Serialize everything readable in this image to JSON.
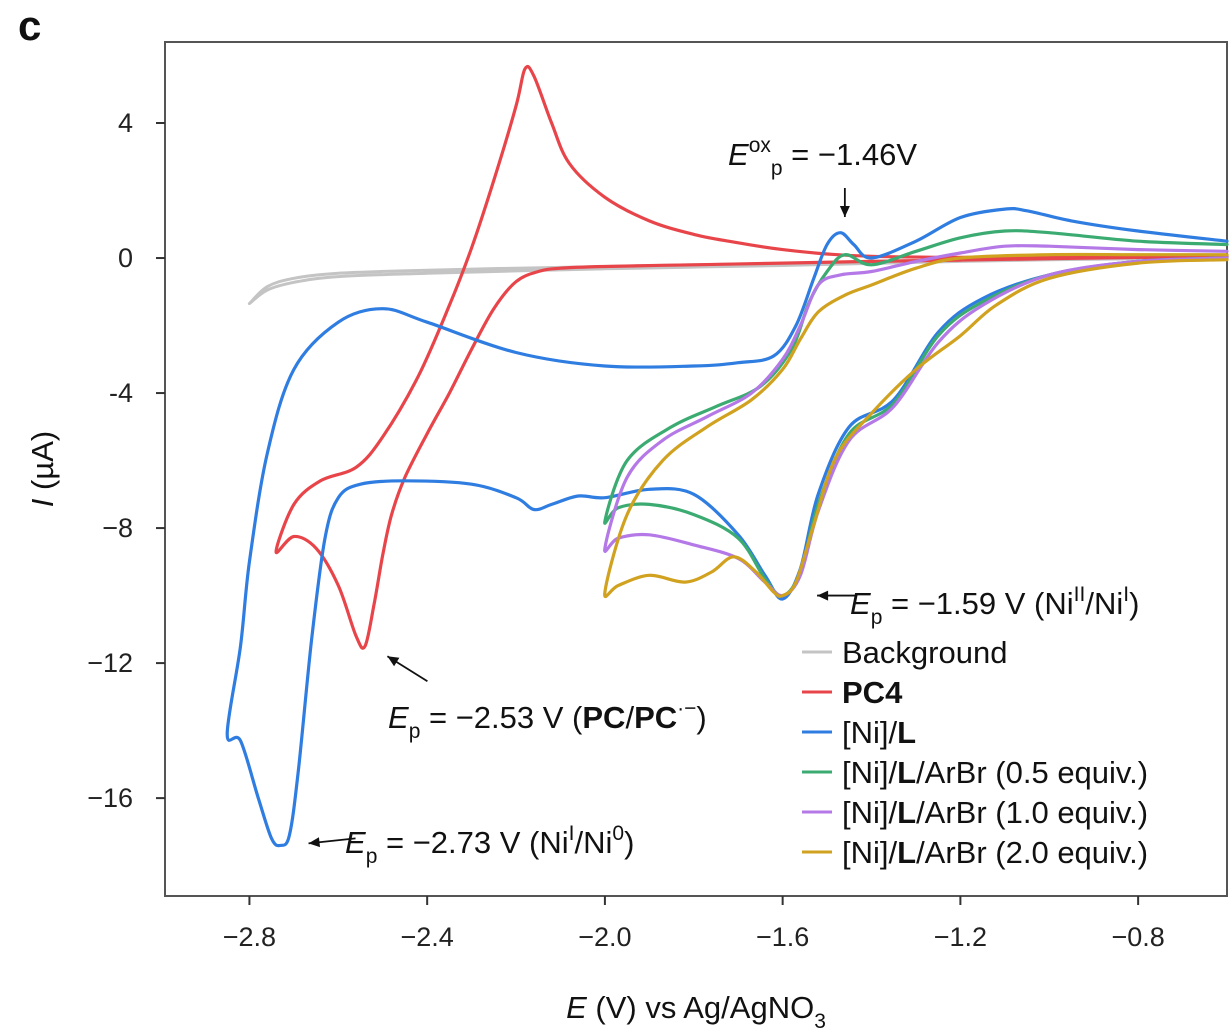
{
  "panel_label": "c",
  "chart_data": {
    "type": "line",
    "xlabel": {
      "italic": "E",
      "rest": " (V) vs Ag/AgNO",
      "sub": "3"
    },
    "ylabel": {
      "italic": "I",
      "rest": " (µA)"
    },
    "xlim": [
      -2.99,
      -0.6
    ],
    "ylim": [
      -18.9,
      6.4
    ],
    "x_ticks": [
      -2.8,
      -2.4,
      -2.0,
      -1.6,
      -1.2,
      -0.8
    ],
    "x_tick_labels": [
      "−2.8",
      "−2.4",
      "−2.0",
      "−1.6",
      "−1.2",
      "−0.8"
    ],
    "y_ticks": [
      4,
      0,
      -4,
      -8,
      -12,
      -16
    ],
    "y_tick_labels": [
      "4",
      "0",
      "-4",
      "−8",
      "−12",
      "−16"
    ],
    "colors": {
      "background": "#c4c4c4",
      "pc4": "#e8454a",
      "ni_l": "#2f7de1",
      "arbr_05": "#3cab72",
      "arbr_10": "#b479e6",
      "arbr_20": "#d1a21f"
    },
    "legend": [
      {
        "key": "background",
        "parts": [
          {
            "t": "Background",
            "b": false
          }
        ]
      },
      {
        "key": "pc4",
        "parts": [
          {
            "t": "PC4",
            "b": true
          }
        ]
      },
      {
        "key": "ni_l",
        "parts": [
          {
            "t": "[Ni]/",
            "b": false
          },
          {
            "t": "L",
            "b": true
          }
        ]
      },
      {
        "key": "arbr_05",
        "parts": [
          {
            "t": "[Ni]/",
            "b": false
          },
          {
            "t": "L",
            "b": true
          },
          {
            "t": "/ArBr (0.5 equiv.)",
            "b": false
          }
        ]
      },
      {
        "key": "arbr_10",
        "parts": [
          {
            "t": "[Ni]/",
            "b": false
          },
          {
            "t": "L",
            "b": true
          },
          {
            "t": "/ArBr (1.0 equiv.)",
            "b": false
          }
        ]
      },
      {
        "key": "arbr_20",
        "parts": [
          {
            "t": "[Ni]/",
            "b": false
          },
          {
            "t": "L",
            "b": true
          },
          {
            "t": "/ArBr (2.0 equiv.)",
            "b": false
          }
        ]
      }
    ],
    "legend_placement": "bottom-right",
    "annotations": [
      {
        "key": "ep_ox",
        "x": -1.46,
        "y": 0.8,
        "parts": [
          {
            "t": "E",
            "i": true
          },
          {
            "t": "ox",
            "sup": true
          },
          {
            "t": "p",
            "sub": true
          },
          {
            "t": " = −1.46V"
          }
        ]
      },
      {
        "key": "ep_ni2",
        "x": -1.59,
        "y": -10.0,
        "parts": [
          {
            "t": "E",
            "i": true
          },
          {
            "t": "p",
            "sub": true
          },
          {
            "t": " = −1.59 V (Ni"
          },
          {
            "t": "II",
            "sup": true
          },
          {
            "t": "/Ni"
          },
          {
            "t": "I",
            "sup": true
          },
          {
            "t": ")"
          }
        ]
      },
      {
        "key": "ep_pc",
        "x": -2.53,
        "y": -11.5,
        "parts": [
          {
            "t": "E",
            "i": true
          },
          {
            "t": "p",
            "sub": true
          },
          {
            "t": " = −2.53 V ("
          },
          {
            "t": "PC",
            "b": true
          },
          {
            "t": "/"
          },
          {
            "t": "PC",
            "b": true
          },
          {
            "t": "·−",
            "sup": true
          },
          {
            "t": ")"
          }
        ]
      },
      {
        "key": "ep_ni1",
        "x": -2.73,
        "y": -17.4,
        "parts": [
          {
            "t": "E",
            "i": true
          },
          {
            "t": "p",
            "sub": true
          },
          {
            "t": " = −2.73 V (Ni"
          },
          {
            "t": "I",
            "sup": true
          },
          {
            "t": "/Ni"
          },
          {
            "t": "0",
            "sup": true
          },
          {
            "t": ")"
          }
        ]
      }
    ],
    "series": [
      {
        "key": "background",
        "name": "Background",
        "closed": true,
        "points": [
          [
            -2.8,
            -1.35
          ],
          [
            -2.76,
            -0.95
          ],
          [
            -2.7,
            -0.72
          ],
          [
            -2.6,
            -0.55
          ],
          [
            -2.4,
            -0.45
          ],
          [
            -2.2,
            -0.38
          ],
          [
            -2.0,
            -0.32
          ],
          [
            -1.8,
            -0.27
          ],
          [
            -1.6,
            -0.22
          ],
          [
            -1.4,
            -0.16
          ],
          [
            -1.2,
            -0.1
          ],
          [
            -1.0,
            -0.05
          ],
          [
            -0.8,
            -0.02
          ],
          [
            -0.6,
            0.0
          ],
          [
            -0.8,
            0.03
          ],
          [
            -1.0,
            0.02
          ],
          [
            -1.2,
            -0.04
          ],
          [
            -1.4,
            -0.1
          ],
          [
            -1.6,
            -0.16
          ],
          [
            -1.8,
            -0.2
          ],
          [
            -2.0,
            -0.25
          ],
          [
            -2.2,
            -0.3
          ],
          [
            -2.4,
            -0.36
          ],
          [
            -2.6,
            -0.45
          ],
          [
            -2.7,
            -0.6
          ],
          [
            -2.76,
            -0.85
          ],
          [
            -2.8,
            -1.35
          ]
        ]
      },
      {
        "key": "pc4",
        "name": "PC4",
        "closed": false,
        "points": [
          [
            -0.6,
            0.05
          ],
          [
            -0.8,
            0.02
          ],
          [
            -1.0,
            -0.02
          ],
          [
            -1.2,
            -0.06
          ],
          [
            -1.4,
            -0.1
          ],
          [
            -1.6,
            -0.15
          ],
          [
            -1.8,
            -0.2
          ],
          [
            -2.0,
            -0.25
          ],
          [
            -2.1,
            -0.3
          ],
          [
            -2.15,
            -0.4
          ],
          [
            -2.2,
            -0.7
          ],
          [
            -2.25,
            -1.5
          ],
          [
            -2.3,
            -2.7
          ],
          [
            -2.35,
            -4.0
          ],
          [
            -2.4,
            -5.2
          ],
          [
            -2.45,
            -6.5
          ],
          [
            -2.48,
            -7.6
          ],
          [
            -2.5,
            -8.8
          ],
          [
            -2.52,
            -10.3
          ],
          [
            -2.54,
            -11.5
          ],
          [
            -2.56,
            -11.2
          ],
          [
            -2.6,
            -9.7
          ],
          [
            -2.65,
            -8.6
          ],
          [
            -2.7,
            -8.25
          ],
          [
            -2.74,
            -8.7
          ],
          [
            -2.7,
            -7.3
          ],
          [
            -2.64,
            -6.6
          ],
          [
            -2.56,
            -6.2
          ],
          [
            -2.5,
            -5.3
          ],
          [
            -2.42,
            -3.5
          ],
          [
            -2.35,
            -1.4
          ],
          [
            -2.3,
            0.3
          ],
          [
            -2.25,
            2.3
          ],
          [
            -2.2,
            4.5
          ],
          [
            -2.18,
            5.6
          ],
          [
            -2.16,
            5.4
          ],
          [
            -2.12,
            4.0
          ],
          [
            -2.08,
            2.8
          ],
          [
            -2.0,
            1.8
          ],
          [
            -1.9,
            1.1
          ],
          [
            -1.8,
            0.7
          ],
          [
            -1.7,
            0.45
          ],
          [
            -1.6,
            0.25
          ],
          [
            -1.5,
            0.12
          ],
          [
            -1.4,
            0.05
          ],
          [
            -1.2,
            0.02
          ],
          [
            -1.0,
            0.03
          ],
          [
            -0.8,
            0.05
          ],
          [
            -0.6,
            0.06
          ]
        ]
      },
      {
        "key": "ni_l",
        "name": "[Ni]/L",
        "closed": false,
        "points": [
          [
            -0.6,
            0.5
          ],
          [
            -0.8,
            0.8
          ],
          [
            -0.95,
            1.1
          ],
          [
            -1.05,
            1.4
          ],
          [
            -1.1,
            1.45
          ],
          [
            -1.2,
            1.2
          ],
          [
            -1.3,
            0.5
          ],
          [
            -1.4,
            0.0
          ],
          [
            -1.44,
            0.4
          ],
          [
            -1.47,
            0.75
          ],
          [
            -1.5,
            0.4
          ],
          [
            -1.53,
            -0.6
          ],
          [
            -1.57,
            -2.0
          ],
          [
            -1.62,
            -2.9
          ],
          [
            -1.7,
            -3.1
          ],
          [
            -1.8,
            -3.2
          ],
          [
            -2.0,
            -3.2
          ],
          [
            -2.2,
            -2.8
          ],
          [
            -2.4,
            -1.9
          ],
          [
            -2.5,
            -1.5
          ],
          [
            -2.6,
            -1.9
          ],
          [
            -2.7,
            -3.3
          ],
          [
            -2.76,
            -5.8
          ],
          [
            -2.8,
            -9.0
          ],
          [
            -2.82,
            -11.5
          ],
          [
            -2.85,
            -14.1
          ],
          [
            -2.82,
            -14.3
          ],
          [
            -2.78,
            -16.0
          ],
          [
            -2.75,
            -17.2
          ],
          [
            -2.73,
            -17.4
          ],
          [
            -2.71,
            -17.1
          ],
          [
            -2.69,
            -15.2
          ],
          [
            -2.66,
            -11.3
          ],
          [
            -2.63,
            -8.3
          ],
          [
            -2.6,
            -7.1
          ],
          [
            -2.55,
            -6.7
          ],
          [
            -2.45,
            -6.6
          ],
          [
            -2.3,
            -6.7
          ],
          [
            -2.2,
            -7.1
          ],
          [
            -2.16,
            -7.45
          ],
          [
            -2.12,
            -7.3
          ],
          [
            -2.06,
            -7.05
          ],
          [
            -2.0,
            -7.1
          ],
          [
            -1.9,
            -6.85
          ],
          [
            -1.8,
            -7.0
          ],
          [
            -1.7,
            -8.2
          ],
          [
            -1.64,
            -9.4
          ],
          [
            -1.6,
            -10.1
          ],
          [
            -1.56,
            -9.2
          ],
          [
            -1.52,
            -7.0
          ],
          [
            -1.45,
            -5.0
          ],
          [
            -1.35,
            -4.2
          ],
          [
            -1.25,
            -2.2
          ],
          [
            -1.15,
            -1.2
          ],
          [
            -1.0,
            -0.5
          ],
          [
            -0.8,
            -0.1
          ],
          [
            -0.6,
            0.0
          ]
        ]
      },
      {
        "key": "arbr_05",
        "name": "[Ni]/L/ArBr (0.5 equiv.)",
        "closed": false,
        "points": [
          [
            -0.6,
            0.4
          ],
          [
            -0.8,
            0.5
          ],
          [
            -1.0,
            0.75
          ],
          [
            -1.1,
            0.8
          ],
          [
            -1.2,
            0.6
          ],
          [
            -1.3,
            0.2
          ],
          [
            -1.4,
            -0.2
          ],
          [
            -1.46,
            0.1
          ],
          [
            -1.5,
            -0.4
          ],
          [
            -1.54,
            -1.3
          ],
          [
            -1.58,
            -2.7
          ],
          [
            -1.65,
            -3.8
          ],
          [
            -1.75,
            -4.4
          ],
          [
            -1.85,
            -5.0
          ],
          [
            -1.95,
            -6.0
          ],
          [
            -2.0,
            -7.8
          ],
          [
            -1.97,
            -7.4
          ],
          [
            -1.9,
            -7.3
          ],
          [
            -1.8,
            -7.6
          ],
          [
            -1.7,
            -8.3
          ],
          [
            -1.64,
            -9.5
          ],
          [
            -1.6,
            -10.0
          ],
          [
            -1.56,
            -9.3
          ],
          [
            -1.52,
            -7.3
          ],
          [
            -1.45,
            -5.2
          ],
          [
            -1.35,
            -4.3
          ],
          [
            -1.25,
            -2.3
          ],
          [
            -1.15,
            -1.3
          ],
          [
            -1.0,
            -0.5
          ],
          [
            -0.8,
            -0.1
          ],
          [
            -0.6,
            0.0
          ]
        ]
      },
      {
        "key": "arbr_10",
        "name": "[Ni]/L/ArBr (1.0 equiv.)",
        "closed": false,
        "points": [
          [
            -0.6,
            0.2
          ],
          [
            -0.8,
            0.25
          ],
          [
            -1.0,
            0.35
          ],
          [
            -1.1,
            0.35
          ],
          [
            -1.2,
            0.15
          ],
          [
            -1.3,
            -0.1
          ],
          [
            -1.4,
            -0.4
          ],
          [
            -1.47,
            -0.5
          ],
          [
            -1.52,
            -0.8
          ],
          [
            -1.56,
            -2.0
          ],
          [
            -1.6,
            -3.0
          ],
          [
            -1.67,
            -4.0
          ],
          [
            -1.77,
            -4.7
          ],
          [
            -1.87,
            -5.4
          ],
          [
            -1.95,
            -6.5
          ],
          [
            -2.0,
            -8.6
          ],
          [
            -1.97,
            -8.3
          ],
          [
            -1.9,
            -8.2
          ],
          [
            -1.8,
            -8.5
          ],
          [
            -1.7,
            -8.9
          ],
          [
            -1.64,
            -9.6
          ],
          [
            -1.6,
            -10.0
          ],
          [
            -1.56,
            -9.4
          ],
          [
            -1.52,
            -7.5
          ],
          [
            -1.45,
            -5.4
          ],
          [
            -1.35,
            -4.4
          ],
          [
            -1.25,
            -2.5
          ],
          [
            -1.15,
            -1.4
          ],
          [
            -1.0,
            -0.5
          ],
          [
            -0.8,
            -0.1
          ],
          [
            -0.6,
            0.0
          ]
        ]
      },
      {
        "key": "arbr_20",
        "name": "[Ni]/L/ArBr (2.0 equiv.)",
        "closed": false,
        "points": [
          [
            -0.6,
            0.1
          ],
          [
            -0.8,
            0.1
          ],
          [
            -1.0,
            0.1
          ],
          [
            -1.2,
            0.0
          ],
          [
            -1.3,
            -0.3
          ],
          [
            -1.4,
            -0.8
          ],
          [
            -1.46,
            -1.1
          ],
          [
            -1.52,
            -1.6
          ],
          [
            -1.56,
            -2.4
          ],
          [
            -1.6,
            -3.3
          ],
          [
            -1.67,
            -4.2
          ],
          [
            -1.77,
            -5.0
          ],
          [
            -1.87,
            -6.0
          ],
          [
            -1.95,
            -7.6
          ],
          [
            -2.0,
            -9.9
          ],
          [
            -1.97,
            -9.7
          ],
          [
            -1.9,
            -9.4
          ],
          [
            -1.82,
            -9.6
          ],
          [
            -1.76,
            -9.3
          ],
          [
            -1.71,
            -8.85
          ],
          [
            -1.66,
            -9.3
          ],
          [
            -1.62,
            -9.9
          ],
          [
            -1.6,
            -10.0
          ],
          [
            -1.57,
            -9.6
          ],
          [
            -1.53,
            -7.9
          ],
          [
            -1.48,
            -5.9
          ],
          [
            -1.4,
            -4.6
          ],
          [
            -1.3,
            -3.3
          ],
          [
            -1.2,
            -2.3
          ],
          [
            -1.12,
            -1.4
          ],
          [
            -1.0,
            -0.6
          ],
          [
            -0.8,
            -0.15
          ],
          [
            -0.6,
            -0.05
          ]
        ]
      }
    ]
  }
}
